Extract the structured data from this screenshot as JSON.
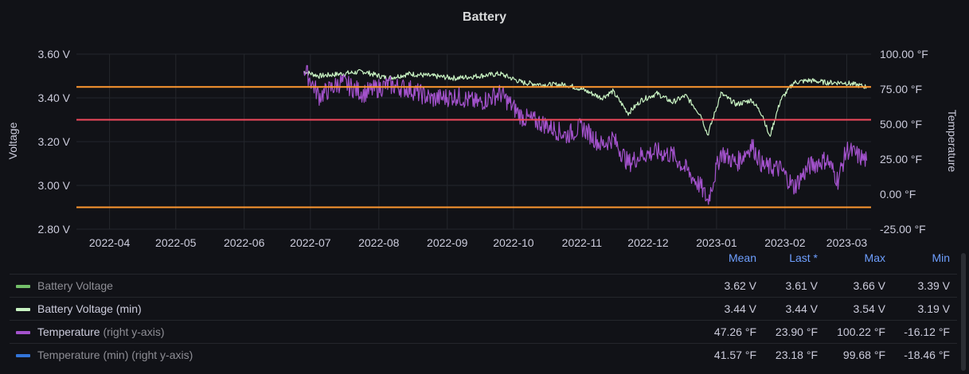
{
  "panel": {
    "title": "Battery"
  },
  "chart_data": {
    "type": "line",
    "title": "Battery",
    "x_ticks": [
      "2022-04",
      "2022-05",
      "2022-06",
      "2022-07",
      "2022-08",
      "2022-09",
      "2022-10",
      "2022-11",
      "2022-12",
      "2023-01",
      "2023-02",
      "2023-03"
    ],
    "y_left": {
      "label": "Voltage",
      "ticks": [
        "3.60 V",
        "3.40 V",
        "3.20 V",
        "3.00 V",
        "2.80 V"
      ],
      "range": [
        2.8,
        3.6
      ]
    },
    "y_right": {
      "label": "Temperature",
      "ticks": [
        "100.00 °F",
        "75.00 °F",
        "50.00 °F",
        "25.00 °F",
        "0.00 °F",
        "-25.00 °F"
      ],
      "range": [
        -25,
        100
      ]
    },
    "thresholds": [
      {
        "value": 3.45,
        "axis": "left",
        "color": "#ff9830"
      },
      {
        "value": 3.3,
        "axis": "left",
        "color": "#f2495c"
      },
      {
        "value": 2.9,
        "axis": "left",
        "color": "#ff9830"
      }
    ],
    "x_range": [
      "2022-03-17",
      "2023-03-12"
    ],
    "series": [
      {
        "name": "Battery Voltage (min)",
        "color": "#c8f2c2",
        "axis": "left",
        "points": [
          [
            "2022-06-28",
            3.52
          ],
          [
            "2022-07-05",
            3.5
          ],
          [
            "2022-07-15",
            3.51
          ],
          [
            "2022-07-25",
            3.52
          ],
          [
            "2022-08-05",
            3.49
          ],
          [
            "2022-08-15",
            3.51
          ],
          [
            "2022-08-25",
            3.5
          ],
          [
            "2022-09-05",
            3.49
          ],
          [
            "2022-09-15",
            3.5
          ],
          [
            "2022-09-25",
            3.51
          ],
          [
            "2022-10-05",
            3.47
          ],
          [
            "2022-10-15",
            3.46
          ],
          [
            "2022-10-25",
            3.46
          ],
          [
            "2022-11-01",
            3.44
          ],
          [
            "2022-11-10",
            3.4
          ],
          [
            "2022-11-15",
            3.43
          ],
          [
            "2022-11-22",
            3.33
          ],
          [
            "2022-11-28",
            3.39
          ],
          [
            "2022-12-05",
            3.42
          ],
          [
            "2022-12-12",
            3.38
          ],
          [
            "2022-12-18",
            3.41
          ],
          [
            "2022-12-25",
            3.32
          ],
          [
            "2022-12-28",
            3.23
          ],
          [
            "2023-01-03",
            3.42
          ],
          [
            "2023-01-10",
            3.37
          ],
          [
            "2023-01-17",
            3.39
          ],
          [
            "2023-01-22",
            3.32
          ],
          [
            "2023-01-25",
            3.22
          ],
          [
            "2023-01-30",
            3.39
          ],
          [
            "2023-02-05",
            3.47
          ],
          [
            "2023-02-12",
            3.48
          ],
          [
            "2023-02-20",
            3.47
          ],
          [
            "2023-02-28",
            3.47
          ],
          [
            "2023-03-10",
            3.45
          ]
        ]
      },
      {
        "name": "Temperature",
        "color": "#a352cc",
        "axis": "right",
        "points": [
          [
            "2022-06-28",
            90
          ],
          [
            "2022-07-05",
            70
          ],
          [
            "2022-07-15",
            80
          ],
          [
            "2022-07-25",
            72
          ],
          [
            "2022-08-05",
            78
          ],
          [
            "2022-08-15",
            75
          ],
          [
            "2022-08-25",
            68
          ],
          [
            "2022-09-05",
            70
          ],
          [
            "2022-09-15",
            65
          ],
          [
            "2022-09-25",
            72
          ],
          [
            "2022-10-05",
            55
          ],
          [
            "2022-10-15",
            50
          ],
          [
            "2022-10-25",
            42
          ],
          [
            "2022-11-01",
            48
          ],
          [
            "2022-11-10",
            35
          ],
          [
            "2022-11-15",
            40
          ],
          [
            "2022-11-22",
            22
          ],
          [
            "2022-11-28",
            28
          ],
          [
            "2022-12-05",
            30
          ],
          [
            "2022-12-12",
            28
          ],
          [
            "2022-12-18",
            18
          ],
          [
            "2022-12-25",
            5
          ],
          [
            "2022-12-28",
            -5
          ],
          [
            "2023-01-03",
            30
          ],
          [
            "2023-01-10",
            22
          ],
          [
            "2023-01-17",
            35
          ],
          [
            "2023-01-22",
            20
          ],
          [
            "2023-01-30",
            18
          ],
          [
            "2023-02-05",
            5
          ],
          [
            "2023-02-12",
            20
          ],
          [
            "2023-02-20",
            25
          ],
          [
            "2023-02-25",
            10
          ],
          [
            "2023-03-01",
            32
          ],
          [
            "2023-03-10",
            24
          ]
        ]
      }
    ]
  },
  "legend": {
    "headers": [
      "Mean",
      "Last *",
      "Max",
      "Min"
    ],
    "rows": [
      {
        "name": "Battery Voltage",
        "suffix": "",
        "color": "#73bf69",
        "values": [
          "3.62 V",
          "3.61 V",
          "3.66 V",
          "3.39 V"
        ]
      },
      {
        "name": "Battery Voltage (min)",
        "suffix": "",
        "color": "#c8f2c2",
        "values": [
          "3.44 V",
          "3.44 V",
          "3.54 V",
          "3.19 V"
        ]
      },
      {
        "name": "Temperature",
        "suffix": " (right y-axis)",
        "color": "#a352cc",
        "values": [
          "47.26 °F",
          "23.90 °F",
          "100.22 °F",
          "-16.12 °F"
        ]
      },
      {
        "name": "Temperature (min)",
        "suffix": " (right y-axis)",
        "color": "#3274d9",
        "values": [
          "41.57 °F",
          "23.18 °F",
          "99.68 °F",
          "-18.46 °F"
        ]
      }
    ]
  }
}
